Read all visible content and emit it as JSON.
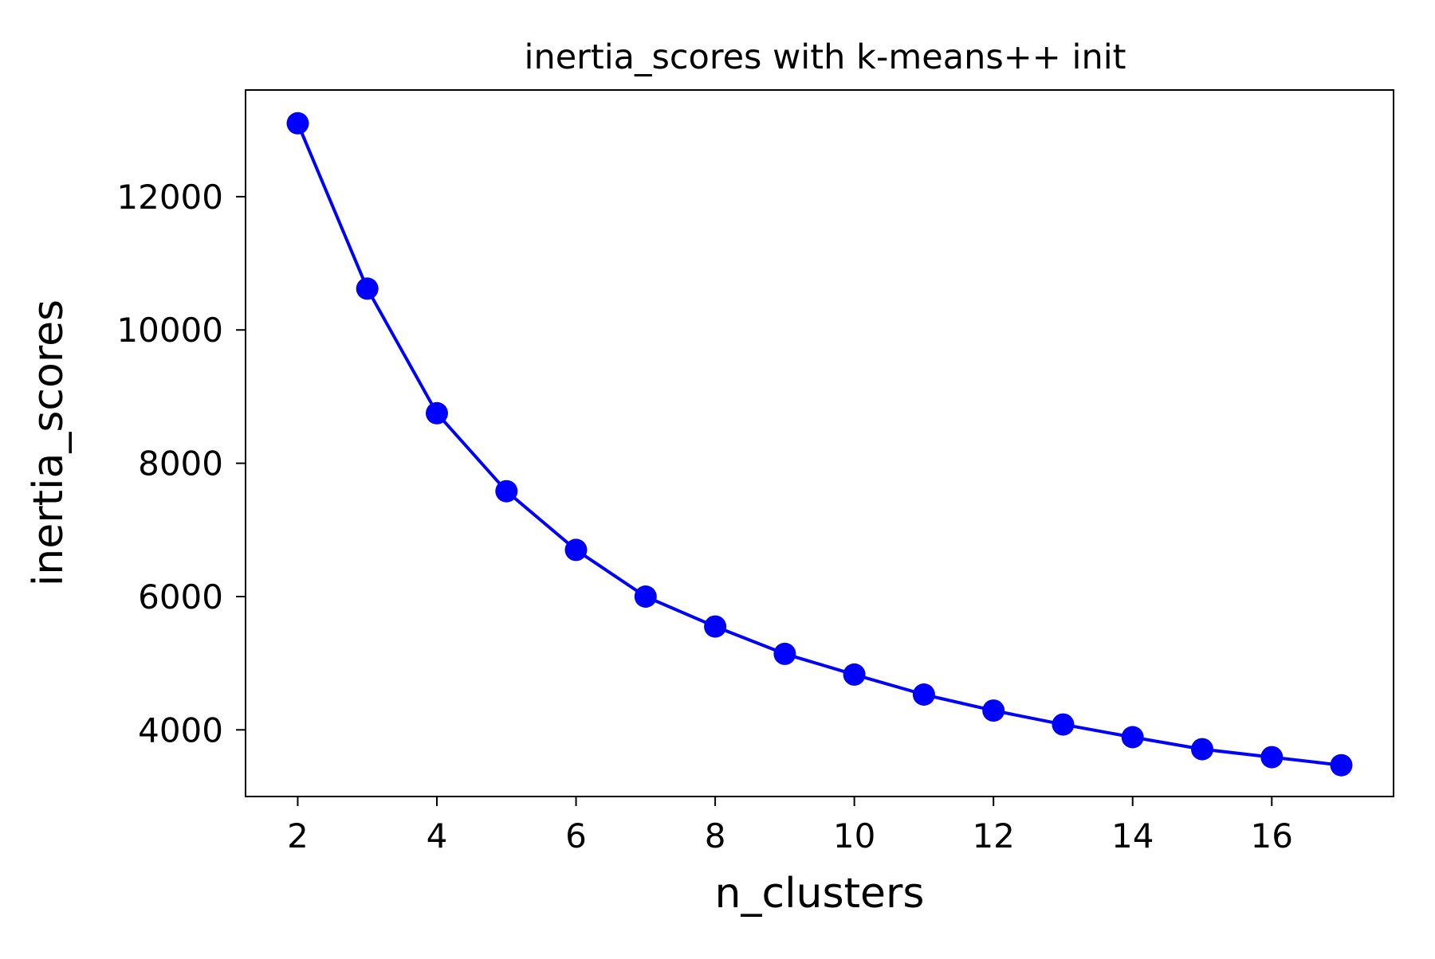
{
  "chart_data": {
    "type": "line",
    "title": "inertia_scores with k-means++ init",
    "xlabel": "n_clusters",
    "ylabel": "inertia_scores",
    "x": [
      2,
      3,
      4,
      5,
      6,
      7,
      8,
      9,
      10,
      11,
      12,
      13,
      14,
      15,
      16,
      17
    ],
    "series": [
      {
        "values": [
          13100,
          10620,
          8750,
          7580,
          6700,
          6000,
          5550,
          5140,
          4830,
          4530,
          4290,
          4080,
          3890,
          3710,
          3590,
          3470
        ]
      }
    ],
    "xlim": [
      1.25,
      17.75
    ],
    "ylim": [
      3000,
      13600
    ],
    "xticks": [
      2,
      4,
      6,
      8,
      10,
      12,
      14,
      16
    ],
    "yticks": [
      4000,
      6000,
      8000,
      10000,
      12000
    ],
    "grid": false,
    "legend": "none",
    "marker": "circle",
    "color": "#0000ff"
  }
}
